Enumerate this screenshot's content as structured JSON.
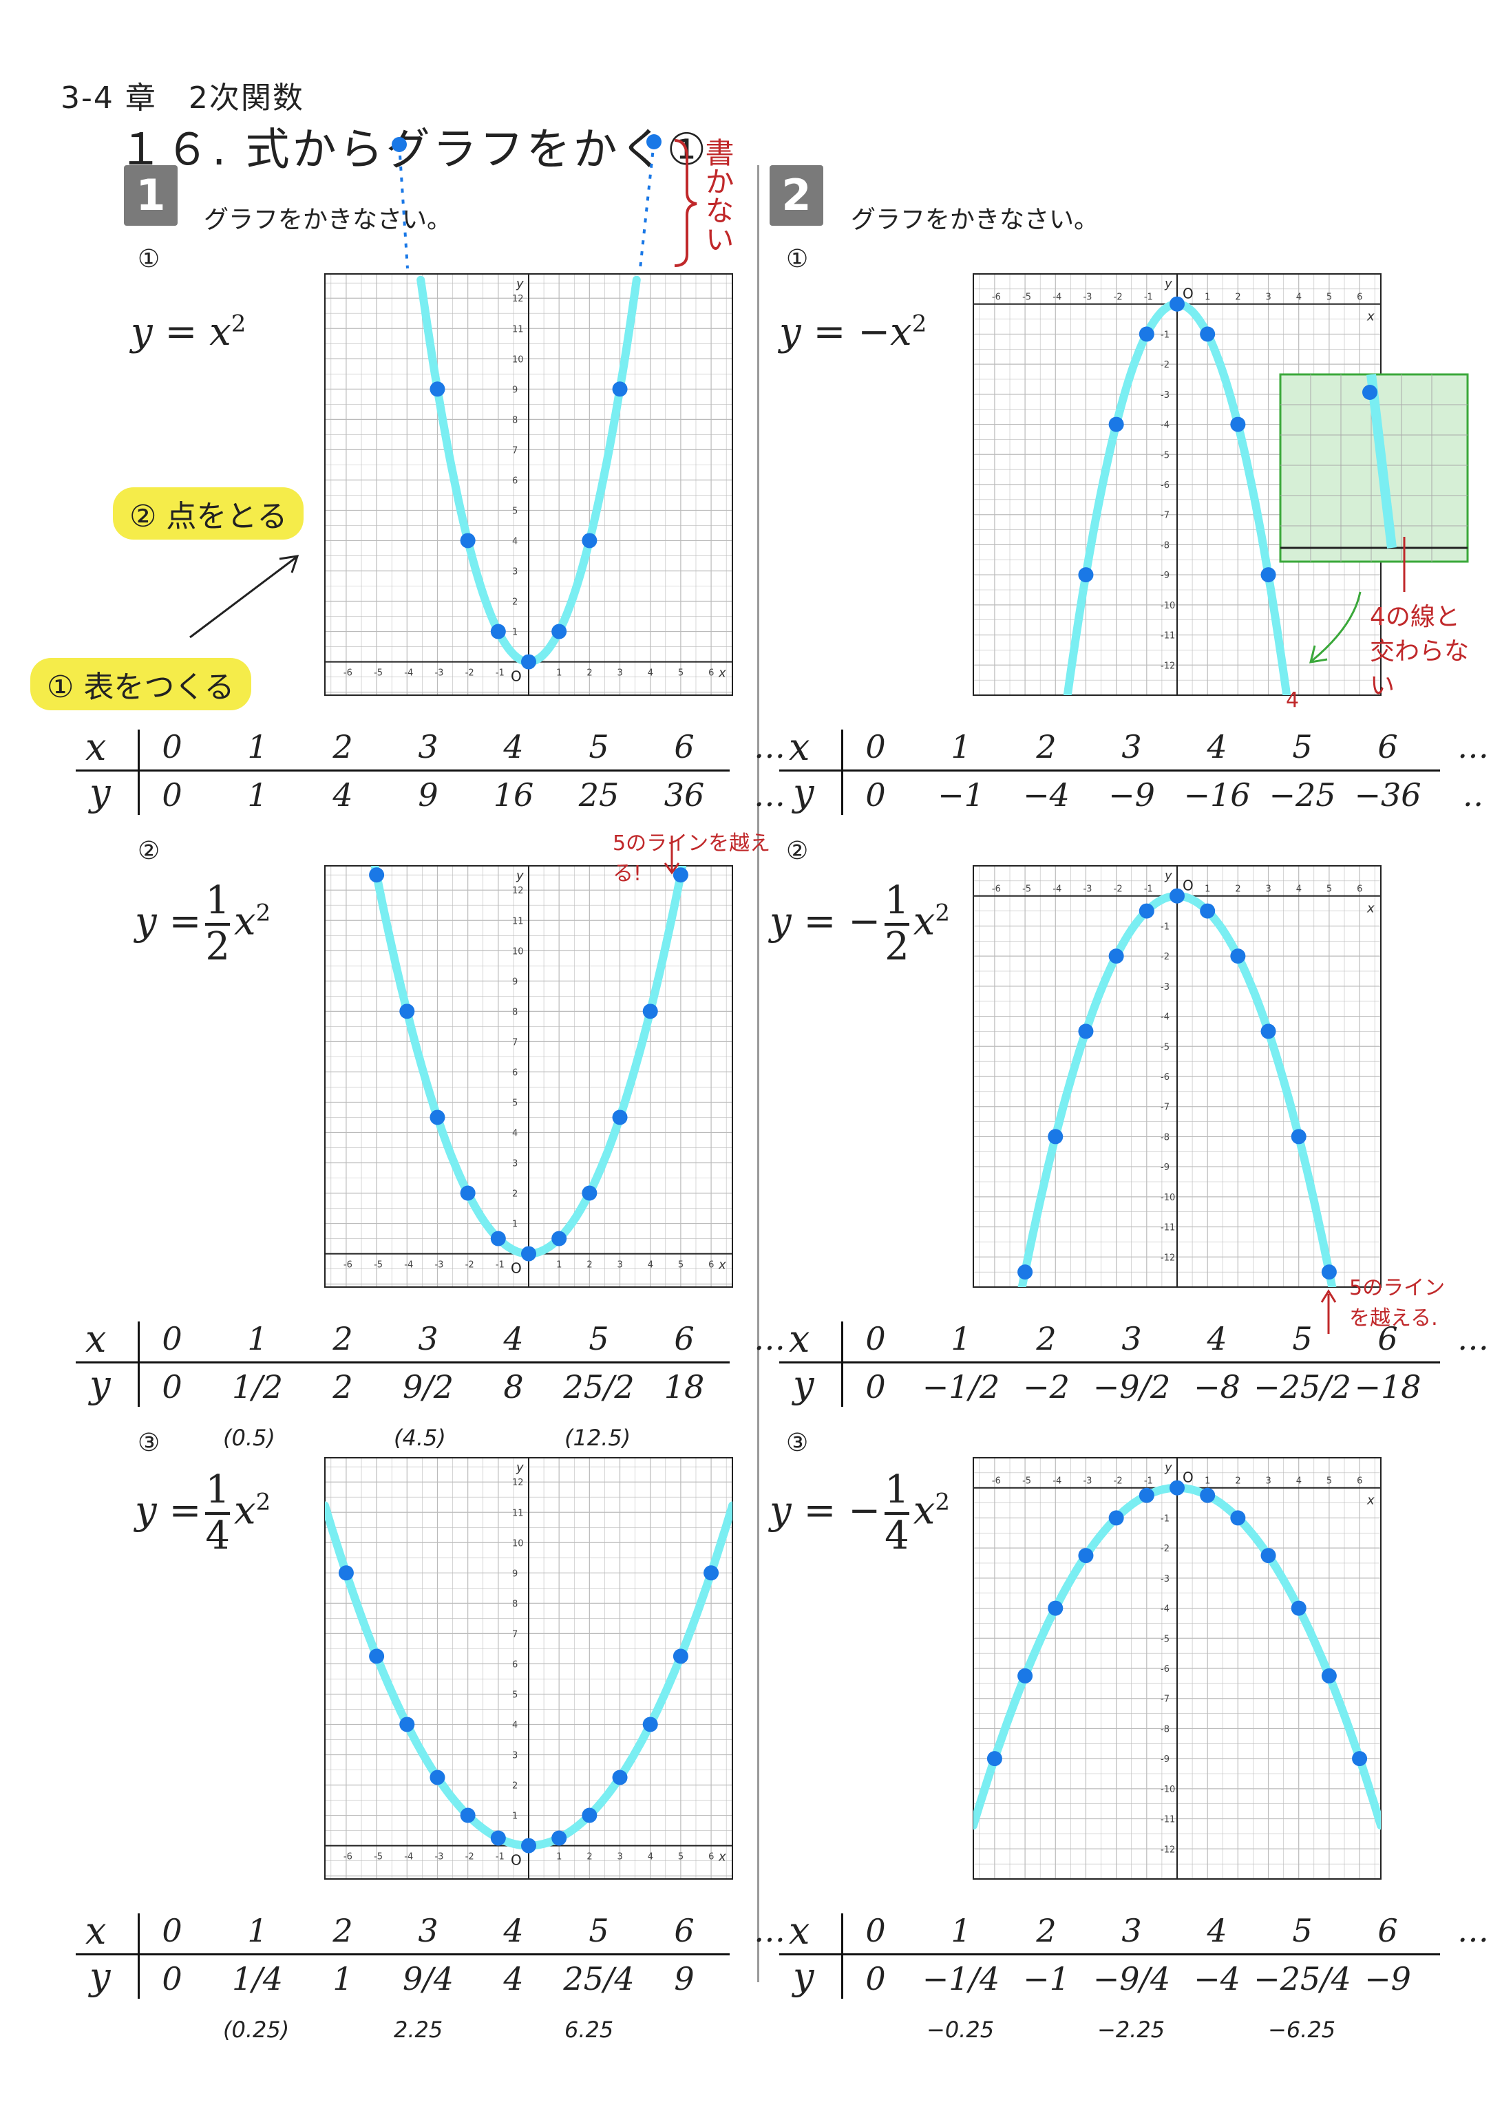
{
  "header": {
    "chapter": "3-4 章　2次関数",
    "title": "１６. 式からグラフをかく①"
  },
  "sections": [
    {
      "number": "1",
      "instruction": "グラフをかきなさい。"
    },
    {
      "number": "2",
      "instruction": "グラフをかきなさい。"
    }
  ],
  "problems": {
    "p1_1": {
      "label": "①"
    },
    "p1_2": {
      "label": "②"
    },
    "p1_3": {
      "label": "③"
    },
    "p2_1": {
      "label": "①"
    },
    "p2_2": {
      "label": "②"
    },
    "p2_3": {
      "label": "③"
    }
  },
  "eq_parts": {
    "y": "y",
    "eq": "=",
    "x": "x",
    "two": "2",
    "one": "1",
    "four": "4",
    "minus": "−"
  },
  "tables": {
    "p1_1": {
      "x": [
        "0",
        "1",
        "2",
        "3",
        "4",
        "5",
        "6",
        "…"
      ],
      "y": [
        "0",
        "1",
        "4",
        "9",
        "16",
        "25",
        "36",
        "…"
      ]
    },
    "p1_2": {
      "x": [
        "0",
        "1",
        "2",
        "3",
        "4",
        "5",
        "6",
        "…"
      ],
      "y": [
        "0",
        "1/2",
        "2",
        "9/2",
        "8",
        "25/2",
        "18"
      ],
      "notes": [
        "(0.5)",
        "(4.5)",
        "(12.5)"
      ]
    },
    "p1_3": {
      "x": [
        "0",
        "1",
        "2",
        "3",
        "4",
        "5",
        "6",
        "…"
      ],
      "y": [
        "0",
        "1/4",
        "1",
        "9/4",
        "4",
        "25/4",
        "9"
      ],
      "notes": [
        "(0.25)",
        "2.25",
        "6.25"
      ]
    },
    "p2_1": {
      "x": [
        "0",
        "1",
        "2",
        "3",
        "4",
        "5",
        "6",
        "…"
      ],
      "y": [
        "0",
        "−1",
        "−4",
        "−9",
        "−16",
        "−25",
        "−36",
        "‥"
      ]
    },
    "p2_2": {
      "x": [
        "0",
        "1",
        "2",
        "3",
        "4",
        "5",
        "6",
        "…"
      ],
      "y": [
        "0",
        "−1/2",
        "−2",
        "−9/2",
        "−8",
        "−25/2",
        "−18"
      ]
    },
    "p2_3": {
      "x": [
        "0",
        "1",
        "2",
        "3",
        "4",
        "5",
        "6",
        "…"
      ],
      "y": [
        "0",
        "−1/4",
        "−1",
        "−9/4",
        "−4",
        "−25/4",
        "−9"
      ],
      "notes": [
        "−0.25",
        "−2.25",
        "−6.25"
      ]
    }
  },
  "table_labels": {
    "x": "x",
    "y": "y"
  },
  "annotations": {
    "no_write": "書かない",
    "step1": "① 表をつくる",
    "step2": "② 点をとる",
    "over5_a": "5のラインを越える!",
    "over5_b": "5のラインを越える.",
    "no_cross": "4の線と交わらない",
    "mark_4": "4"
  },
  "axis": {
    "y": "y",
    "x": "x",
    "origin": "O"
  },
  "colors": {
    "curve": "#7aeef2",
    "point": "#1a78e6",
    "grid": "#bbbbbb",
    "red_note": "#c0282a",
    "highlight": "#f5ec4a",
    "inset": "#3aa83a"
  },
  "chart_data": [
    {
      "type": "scatter",
      "id": "p1_1",
      "equation": "y = x^2",
      "xlim": [
        -6,
        6
      ],
      "ylim": [
        0,
        12
      ],
      "grid": true,
      "x": [
        -3,
        -2,
        -1,
        0,
        1,
        2,
        3
      ],
      "y": [
        9,
        4,
        1,
        0,
        1,
        4,
        9
      ]
    },
    {
      "type": "scatter",
      "id": "p1_2",
      "equation": "y = 1/2 x^2",
      "xlim": [
        -6,
        6
      ],
      "ylim": [
        0,
        12
      ],
      "grid": true,
      "x": [
        -5,
        -4,
        -3,
        -2,
        -1,
        0,
        1,
        2,
        3,
        4,
        5
      ],
      "y": [
        12.5,
        8,
        4.5,
        2,
        0.5,
        0,
        0.5,
        2,
        4.5,
        8,
        12.5
      ]
    },
    {
      "type": "scatter",
      "id": "p1_3",
      "equation": "y = 1/4 x^2",
      "xlim": [
        -6,
        6
      ],
      "ylim": [
        0,
        12
      ],
      "grid": true,
      "x": [
        -6,
        -5,
        -4,
        -3,
        -2,
        -1,
        0,
        1,
        2,
        3,
        4,
        5,
        6
      ],
      "y": [
        9,
        6.25,
        4,
        2.25,
        1,
        0.25,
        0,
        0.25,
        1,
        2.25,
        4,
        6.25,
        9
      ]
    },
    {
      "type": "scatter",
      "id": "p2_1",
      "equation": "y = -x^2",
      "xlim": [
        -6,
        6
      ],
      "ylim": [
        -12,
        0
      ],
      "grid": true,
      "x": [
        -3,
        -2,
        -1,
        0,
        1,
        2,
        3
      ],
      "y": [
        -9,
        -4,
        -1,
        0,
        -1,
        -4,
        -9
      ]
    },
    {
      "type": "scatter",
      "id": "p2_2",
      "equation": "y = -1/2 x^2",
      "xlim": [
        -6,
        6
      ],
      "ylim": [
        -12,
        0
      ],
      "grid": true,
      "x": [
        -5,
        -4,
        -3,
        -2,
        -1,
        0,
        1,
        2,
        3,
        4,
        5
      ],
      "y": [
        -12.5,
        -8,
        -4.5,
        -2,
        -0.5,
        0,
        -0.5,
        -2,
        -4.5,
        -8,
        -12.5
      ]
    },
    {
      "type": "scatter",
      "id": "p2_3",
      "equation": "y = -1/4 x^2",
      "xlim": [
        -6,
        6
      ],
      "ylim": [
        -12,
        0
      ],
      "grid": true,
      "x": [
        -6,
        -5,
        -4,
        -3,
        -2,
        -1,
        0,
        1,
        2,
        3,
        4,
        5,
        6
      ],
      "y": [
        -9,
        -6.25,
        -4,
        -2.25,
        -1,
        -0.25,
        0,
        -0.25,
        -1,
        -2.25,
        -4,
        -6.25,
        -9
      ]
    }
  ]
}
